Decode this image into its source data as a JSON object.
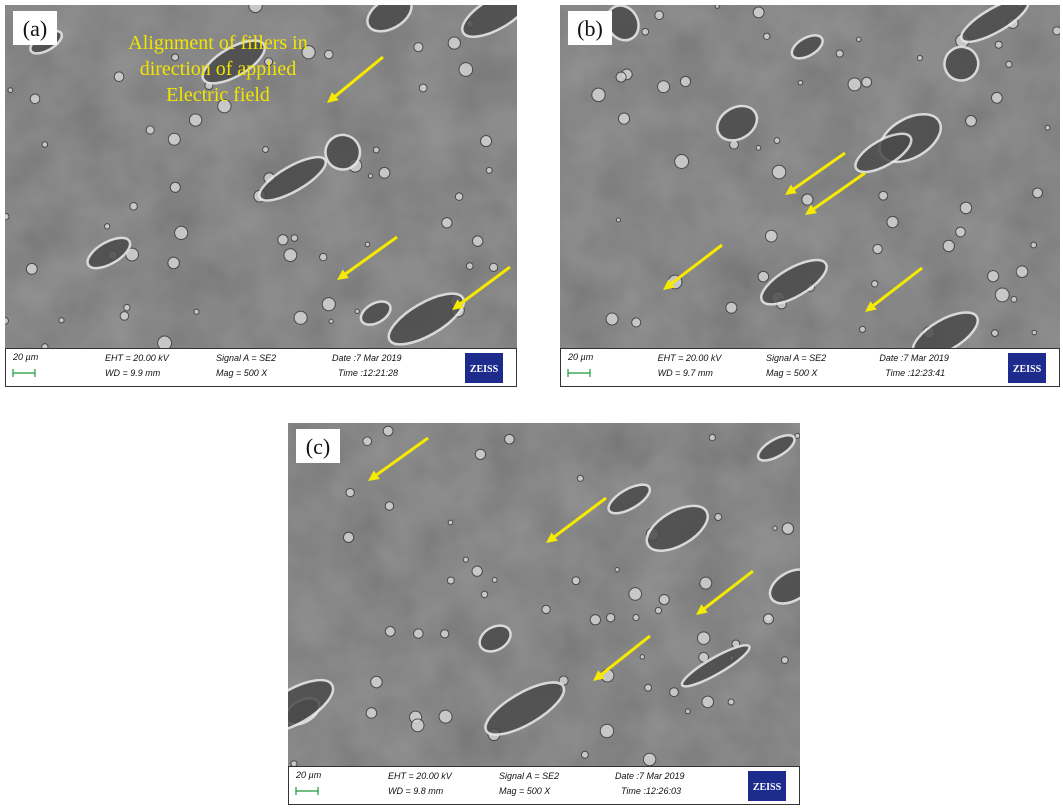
{
  "panels": [
    {
      "label": "(a)",
      "annotation_lines": [
        "Alignment of fillers in",
        "direction of applied",
        "Electric field"
      ],
      "scale_bar": "20 µm",
      "eht": "EHT = 20.00 kV",
      "wd": "WD = 9.9 mm",
      "signal": "Signal A = SE2",
      "mag": "Mag =   500 X",
      "date": "Date :7 Mar 2019",
      "time": "Time :12:21:28",
      "logo": "ZEISS"
    },
    {
      "label": "(b)",
      "scale_bar": "20 µm",
      "eht": "EHT = 20.00 kV",
      "wd": "WD = 9.7 mm",
      "signal": "Signal A = SE2",
      "mag": "Mag =   500 X",
      "date": "Date :7 Mar 2019",
      "time": "Time :12:23:41",
      "logo": "ZEISS"
    },
    {
      "label": "(c)",
      "scale_bar": "20 µm",
      "eht": "EHT = 20.00 kV",
      "wd": "WD = 9.8 mm",
      "signal": "Signal A = SE2",
      "mag": "Mag =   500 X",
      "date": "Date :7 Mar 2019",
      "time": "Time :12:26:03",
      "logo": "ZEISS"
    }
  ]
}
